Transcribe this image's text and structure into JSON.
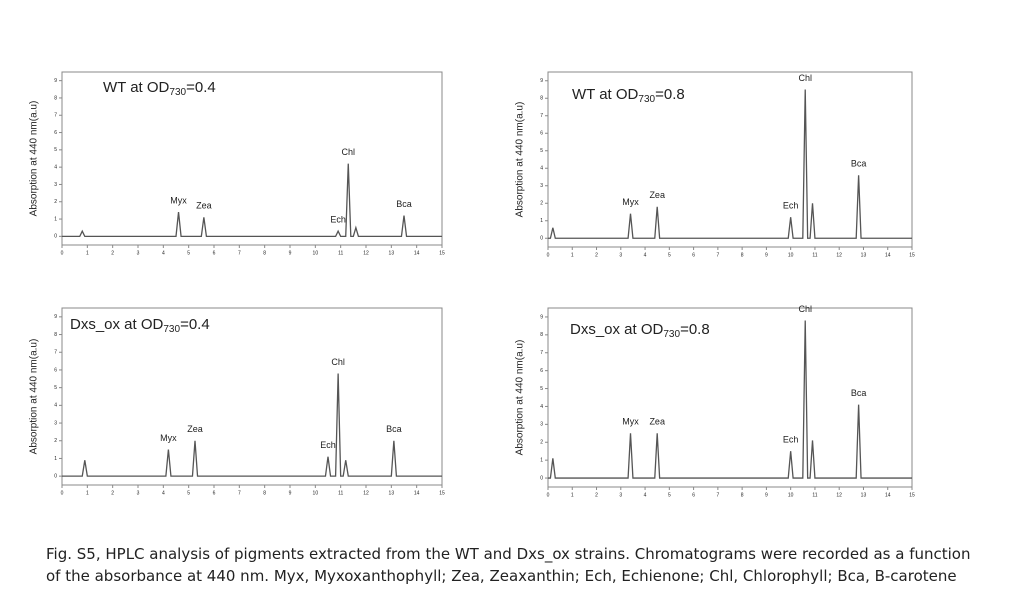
{
  "chart_data": [
    {
      "type": "line",
      "title": "WT at OD",
      "title_sub": "730",
      "title_end": "=0.4",
      "ylabel": "Absorption at 440 nm(a.u)",
      "xlim": [
        0,
        15
      ],
      "ylim": [
        -0.5,
        9.5
      ],
      "xticks": [
        0,
        1,
        2,
        3,
        4,
        5,
        6,
        7,
        8,
        9,
        10,
        11,
        12,
        13,
        14,
        15
      ],
      "yticks": [
        0,
        1,
        2,
        3,
        4,
        5,
        6,
        7,
        8,
        9
      ],
      "series": [
        {
          "color": "#555555",
          "x": [
            0,
            0.7,
            0.8,
            0.9,
            4.5,
            4.6,
            4.7,
            5.5,
            5.6,
            5.7,
            10.8,
            10.9,
            11.0,
            11.2,
            11.3,
            11.4,
            11.5,
            11.6,
            11.7,
            13.4,
            13.5,
            13.6,
            15
          ],
          "values": [
            0,
            0,
            0.3,
            0,
            0,
            1.4,
            0,
            0,
            1.1,
            0,
            0,
            0.3,
            0,
            0,
            4.2,
            0,
            0,
            0.5,
            0,
            0,
            1.2,
            0,
            0
          ],
          "value_labels": [
            null,
            null,
            null,
            null,
            null,
            "Myx",
            null,
            null,
            "Zea",
            null,
            null,
            "Ech",
            null,
            null,
            "Chl",
            null,
            null,
            null,
            null,
            null,
            "Bca",
            null,
            null
          ]
        }
      ]
    },
    {
      "type": "line",
      "title": "WT at OD",
      "title_sub": "730",
      "title_end": "=0.8",
      "ylabel": "Absorption at 440 nm(a.u)",
      "xlim": [
        0,
        15
      ],
      "ylim": [
        -0.5,
        9.5
      ],
      "xticks": [
        0,
        1,
        2,
        3,
        4,
        5,
        6,
        7,
        8,
        9,
        10,
        11,
        12,
        13,
        14,
        15
      ],
      "yticks": [
        0,
        1,
        2,
        3,
        4,
        5,
        6,
        7,
        8,
        9
      ],
      "series": [
        {
          "color": "#555555",
          "x": [
            0,
            0.1,
            0.2,
            0.3,
            3.3,
            3.4,
            3.5,
            4.4,
            4.5,
            4.6,
            9.9,
            10.0,
            10.1,
            10.5,
            10.6,
            10.7,
            10.8,
            10.9,
            11.0,
            12.7,
            12.8,
            12.9,
            15
          ],
          "values": [
            0,
            0,
            0.6,
            0,
            0,
            1.4,
            0,
            0,
            1.8,
            0,
            0,
            1.2,
            0,
            0,
            8.5,
            0,
            0,
            2.0,
            0,
            0,
            3.6,
            0,
            0
          ],
          "value_labels": [
            null,
            null,
            null,
            null,
            null,
            "Myx",
            null,
            null,
            "Zea",
            null,
            null,
            "Ech",
            null,
            null,
            "Chl",
            null,
            null,
            null,
            null,
            null,
            "Bca",
            null,
            null
          ]
        }
      ]
    },
    {
      "type": "line",
      "title": "Dxs_ox at OD",
      "title_sub": "730",
      "title_end": "=0.4",
      "ylabel": "Absorption at 440 nm(a.u)",
      "xlim": [
        0,
        15
      ],
      "ylim": [
        -0.5,
        9.5
      ],
      "xticks": [
        0,
        1,
        2,
        3,
        4,
        5,
        6,
        7,
        8,
        9,
        10,
        11,
        12,
        13,
        14,
        15
      ],
      "yticks": [
        0,
        1,
        2,
        3,
        4,
        5,
        6,
        7,
        8,
        9
      ],
      "series": [
        {
          "color": "#555555",
          "x": [
            0,
            0.8,
            0.9,
            1.0,
            4.1,
            4.2,
            4.3,
            5.15,
            5.25,
            5.35,
            10.4,
            10.5,
            10.6,
            10.8,
            10.9,
            11.0,
            11.1,
            11.2,
            11.3,
            13.0,
            13.1,
            13.2,
            15
          ],
          "values": [
            0,
            0,
            0.9,
            0,
            0,
            1.5,
            0,
            0,
            2.0,
            0,
            0,
            1.1,
            0,
            0,
            5.8,
            0,
            0,
            0.9,
            0,
            0,
            2.0,
            0,
            0
          ],
          "value_labels": [
            null,
            null,
            null,
            null,
            null,
            "Myx",
            null,
            null,
            "Zea",
            null,
            null,
            "Ech",
            null,
            null,
            "Chl",
            null,
            null,
            null,
            null,
            null,
            "Bca",
            null,
            null
          ]
        }
      ]
    },
    {
      "type": "line",
      "title": "Dxs_ox at OD",
      "title_sub": "730",
      "title_end": "=0.8",
      "ylabel": "Absorption at 440 nm(a.u)",
      "xlim": [
        0,
        15
      ],
      "ylim": [
        -0.5,
        9.5
      ],
      "xticks": [
        0,
        1,
        2,
        3,
        4,
        5,
        6,
        7,
        8,
        9,
        10,
        11,
        12,
        13,
        14,
        15
      ],
      "yticks": [
        0,
        1,
        2,
        3,
        4,
        5,
        6,
        7,
        8,
        9
      ],
      "series": [
        {
          "color": "#555555",
          "x": [
            0,
            0.1,
            0.2,
            0.3,
            3.3,
            3.4,
            3.5,
            4.4,
            4.5,
            4.6,
            9.9,
            10.0,
            10.1,
            10.5,
            10.6,
            10.7,
            10.8,
            10.9,
            11.0,
            12.7,
            12.8,
            12.9,
            15
          ],
          "values": [
            0,
            0,
            1.1,
            0,
            0,
            2.5,
            0,
            0,
            2.5,
            0,
            0,
            1.5,
            0,
            0,
            8.8,
            0,
            0,
            2.1,
            0,
            0,
            4.1,
            0,
            0
          ],
          "value_labels": [
            null,
            null,
            null,
            null,
            null,
            "Myx",
            null,
            null,
            "Zea",
            null,
            null,
            "Ech",
            null,
            null,
            "Chl",
            null,
            null,
            null,
            null,
            null,
            "Bca",
            null,
            null
          ]
        }
      ]
    }
  ],
  "caption": "Fig. S5, HPLC analysis of pigments extracted from the WT and Dxs_ox strains. Chromatograms were recorded as a function of the absorbance at 440 nm.  Myx, Myxoxanthophyll; Zea, Zeaxanthin; Ech, Echienone; Chl, Chlorophyll; Bca, B-carotene"
}
